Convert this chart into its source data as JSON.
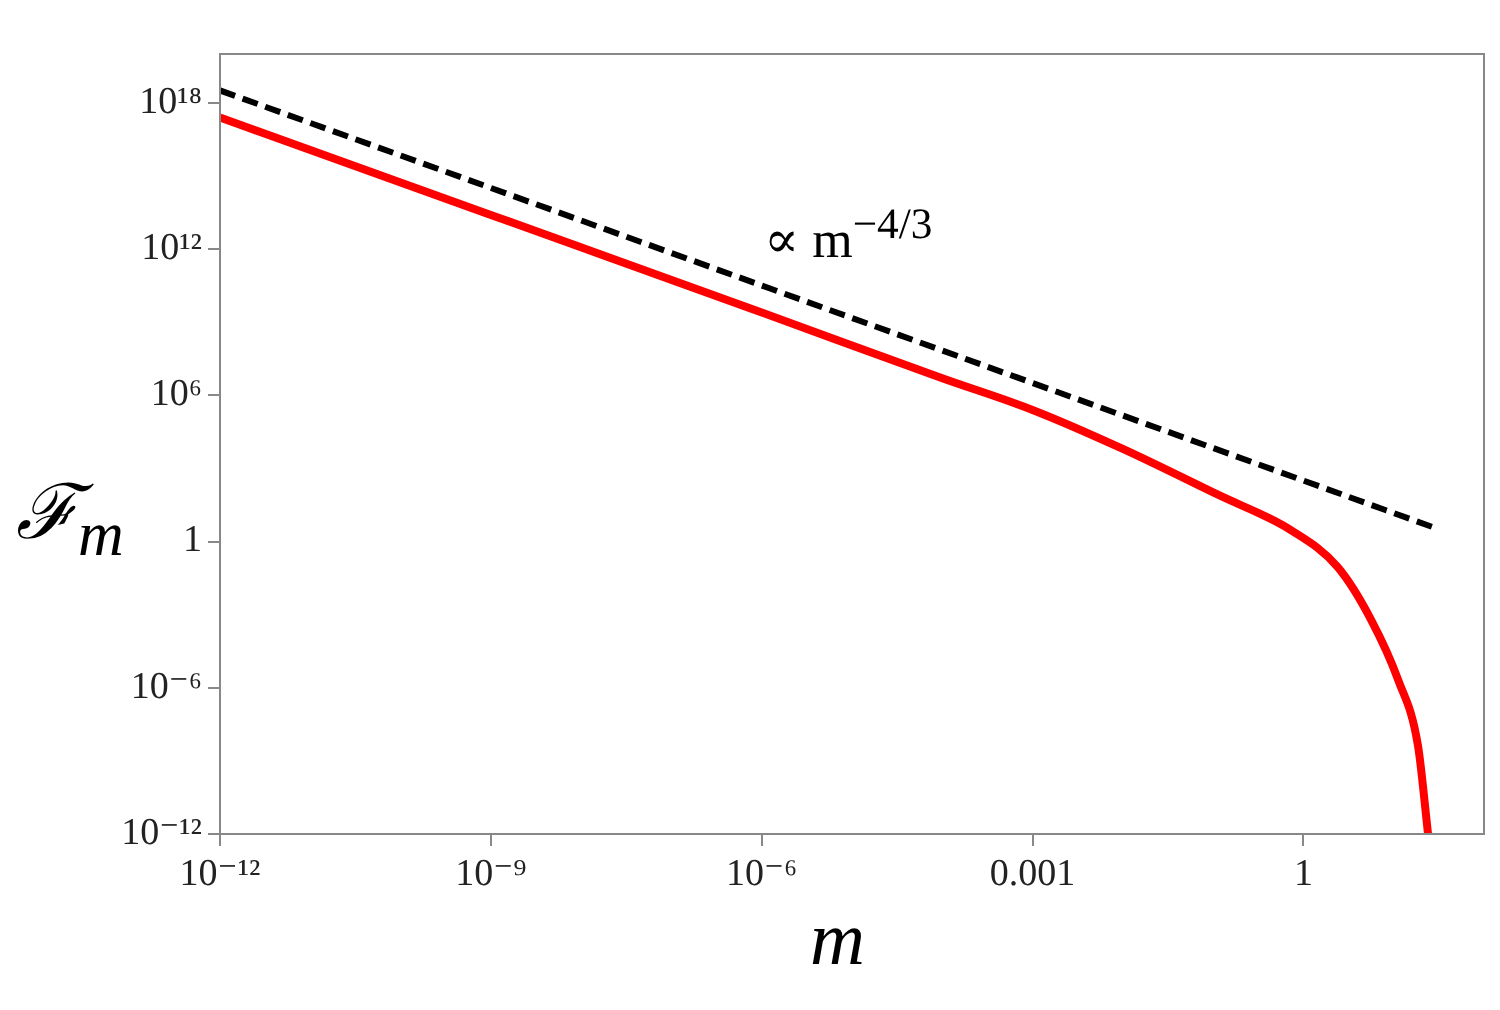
{
  "chart_data": {
    "type": "line",
    "xlabel": "m",
    "ylabel": "ℱ$_{m}$",
    "log": "xy",
    "grid": false,
    "legend": false,
    "marker": "none",
    "annotations": [
      "∝ m$^{−4/3}$"
    ],
    "xlim": [
      1e-12,
      100
    ],
    "ylim": [
      1e-12,
      1e+20
    ],
    "xticks": [
      {
        "value": 1e-12,
        "label": "10⁻¹²"
      },
      {
        "value": 1e-09,
        "label": "10⁻⁹"
      },
      {
        "value": 1e-06,
        "label": "10⁻⁶"
      },
      0.001,
      1
    ],
    "yticks": [
      {
        "value": 1e-12,
        "label": "10⁻¹²"
      },
      {
        "value": 1e-06,
        "label": "10⁻⁶"
      },
      1,
      {
        "value": 1000000.0,
        "label": "10⁶"
      },
      {
        "value": 1000000000000.0,
        "label": "10¹²"
      },
      {
        "value": 1e+18,
        "label": "10¹⁸"
      }
    ],
    "series": [
      {
        "color": "#ff0000",
        "line_style": "solid",
        "x": [
          1e-12,
          1e-09,
          1e-06,
          0.0001,
          0.001,
          0.01,
          0.11,
          0.74,
          2.4,
          5.6,
          11.2,
          18.6,
          24
        ],
        "values": [
          2.5e+17,
          25000000000000.0,
          2500000000.0,
          5000000.0,
          250000.0,
          6300.0,
          87,
          2.8,
          0.089,
          0.00063,
          2.1e-06,
          4e-09,
          1e-12
        ]
      },
      {
        "color": "#000000",
        "line_style": "dashed",
        "x": [
          1e-12,
          27
        ],
        "values": [
          3.2e+18,
          3.9
        ]
      }
    ]
  }
}
